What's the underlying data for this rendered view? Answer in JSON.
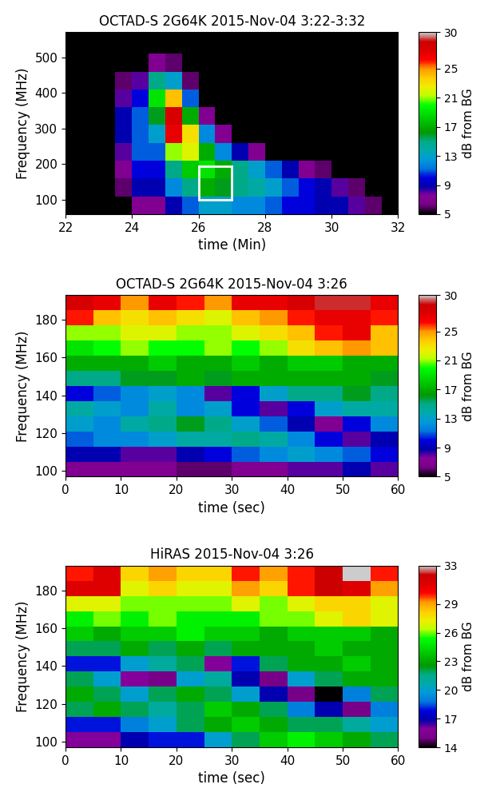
{
  "chart_data": [
    {
      "type": "heatmap",
      "title": "OCTAD-S 2G64K 2015-Nov-04 3:22-3:32",
      "x_label": "time (Min)",
      "y_label": "Frequency (MHz)",
      "xlim": [
        22,
        32
      ],
      "xticks": [
        22,
        24,
        26,
        28,
        30,
        32
      ],
      "ylim": [
        60,
        570
      ],
      "yticks": [
        100,
        200,
        300,
        400,
        500
      ],
      "x_edges": [
        22,
        22.5,
        23,
        23.5,
        24,
        24.5,
        25,
        25.5,
        26,
        26.5,
        27,
        27.5,
        28,
        28.5,
        29,
        29.5,
        30,
        30.5,
        31,
        31.5,
        32
      ],
      "y_edges": [
        60,
        110,
        160,
        210,
        260,
        310,
        360,
        410,
        460,
        510,
        570
      ],
      "cells": [
        [
          5,
          5,
          5,
          5,
          7,
          7,
          9,
          11,
          13,
          13,
          12,
          12,
          11,
          10,
          10,
          9,
          9,
          8,
          6,
          5
        ],
        [
          5,
          5,
          5,
          6,
          9,
          9,
          12,
          15,
          17,
          16,
          15,
          14,
          13,
          11,
          10,
          9,
          8,
          6,
          5,
          5
        ],
        [
          5,
          5,
          5,
          7,
          10,
          10,
          15,
          18,
          19,
          17,
          15,
          13,
          11,
          9,
          7,
          6,
          5,
          5,
          5,
          5
        ],
        [
          5,
          5,
          5,
          8,
          11,
          11,
          21,
          22,
          17,
          12,
          9,
          7,
          5,
          5,
          5,
          5,
          5,
          5,
          5,
          5
        ],
        [
          5,
          5,
          5,
          9,
          11,
          13,
          27,
          23,
          12,
          7,
          5,
          5,
          5,
          5,
          5,
          5,
          5,
          5,
          5,
          5
        ],
        [
          5,
          5,
          5,
          9,
          11,
          16,
          28,
          17,
          7,
          5,
          5,
          5,
          5,
          5,
          5,
          5,
          5,
          5,
          5,
          5
        ],
        [
          5,
          5,
          5,
          8,
          10,
          19,
          24,
          11,
          5,
          5,
          5,
          5,
          5,
          5,
          5,
          5,
          5,
          5,
          5,
          5
        ],
        [
          5,
          5,
          5,
          6,
          8,
          15,
          13,
          6,
          5,
          5,
          5,
          5,
          5,
          5,
          5,
          5,
          5,
          5,
          5,
          5
        ],
        [
          5,
          5,
          5,
          5,
          5,
          7,
          6,
          5,
          5,
          5,
          5,
          5,
          5,
          5,
          5,
          5,
          5,
          5,
          5,
          5
        ],
        [
          5,
          5,
          5,
          5,
          5,
          5,
          5,
          5,
          5,
          5,
          5,
          5,
          5,
          5,
          5,
          5,
          5,
          5,
          5,
          5
        ]
      ],
      "box": {
        "x": [
          26,
          27
        ],
        "y": [
          100,
          195
        ]
      },
      "colorbar": {
        "range": [
          5,
          30
        ],
        "ticks": [
          5,
          9,
          13,
          17,
          21,
          25,
          30
        ],
        "label": "dB from BG"
      }
    },
    {
      "type": "heatmap",
      "title": "OCTAD-S 2G64K 2015-Nov-04 3:26",
      "x_label": "time (sec)",
      "y_label": "Frequency (MHz)",
      "xlim": [
        0,
        60
      ],
      "xticks": [
        0,
        10,
        20,
        30,
        40,
        50,
        60
      ],
      "ylim": [
        97,
        193
      ],
      "yticks": [
        100,
        120,
        140,
        160,
        180
      ],
      "x_edges": [
        0,
        5,
        10,
        15,
        20,
        25,
        30,
        35,
        40,
        45,
        50,
        55,
        60
      ],
      "y_edges": [
        97,
        105,
        113,
        121,
        129,
        137,
        145,
        153,
        161,
        169,
        177,
        185,
        193
      ],
      "cells": [
        [
          7,
          7,
          7,
          7,
          6,
          6,
          7,
          7,
          8,
          8,
          9,
          8
        ],
        [
          9,
          9,
          8,
          8,
          9,
          10,
          11,
          12,
          13,
          12,
          11,
          10
        ],
        [
          11,
          12,
          12,
          13,
          14,
          14,
          15,
          14,
          12,
          10,
          8,
          9
        ],
        [
          13,
          12,
          14,
          15,
          16,
          15,
          13,
          11,
          9,
          7,
          10,
          12
        ],
        [
          14,
          13,
          12,
          14,
          12,
          13,
          10,
          8,
          10,
          13,
          14,
          14
        ],
        [
          10,
          11,
          12,
          13,
          12,
          8,
          10,
          13,
          15,
          15,
          16,
          15
        ],
        [
          15,
          15,
          16,
          16,
          17,
          16,
          17,
          17,
          17,
          17,
          17,
          16
        ],
        [
          17,
          17,
          17,
          18,
          17,
          17,
          18,
          17,
          18,
          18,
          17,
          17
        ],
        [
          19,
          20,
          21,
          20,
          20,
          21,
          20,
          21,
          23,
          24,
          25,
          24
        ],
        [
          21,
          21,
          22,
          22,
          21,
          21,
          22,
          23,
          24,
          26,
          27,
          24
        ],
        [
          26,
          24,
          23,
          24,
          23,
          22,
          24,
          25,
          26,
          27,
          27,
          26
        ],
        [
          28,
          27,
          25,
          27,
          26,
          25,
          27,
          27,
          28,
          29,
          29,
          27
        ]
      ],
      "colorbar": {
        "range": [
          5,
          30
        ],
        "ticks": [
          5,
          9,
          13,
          17,
          21,
          25,
          30
        ],
        "label": "dB from BG"
      }
    },
    {
      "type": "heatmap",
      "title": "HiRAS 2015-Nov-04 3:26",
      "x_label": "time (sec)",
      "y_label": "Frequency (MHz)",
      "xlim": [
        0,
        60
      ],
      "xticks": [
        0,
        10,
        20,
        30,
        40,
        50,
        60
      ],
      "ylim": [
        97,
        193
      ],
      "yticks": [
        100,
        120,
        140,
        160,
        180
      ],
      "x_edges": [
        0,
        5,
        10,
        15,
        20,
        25,
        30,
        35,
        40,
        45,
        50,
        55,
        60
      ],
      "y_edges": [
        97,
        105,
        113,
        121,
        129,
        137,
        145,
        153,
        161,
        169,
        177,
        185,
        193
      ],
      "cells": [
        [
          16,
          16,
          17,
          18,
          18,
          20,
          22,
          24,
          25,
          24,
          23,
          22
        ],
        [
          18,
          18,
          19,
          20,
          22,
          23,
          24,
          23,
          22,
          22,
          21,
          20
        ],
        [
          22,
          23,
          22,
          21,
          22,
          24,
          23,
          22,
          19,
          17,
          15,
          19
        ],
        [
          23,
          22,
          20,
          22,
          23,
          22,
          20,
          17,
          15,
          14,
          19,
          22
        ],
        [
          22,
          20,
          16,
          15,
          20,
          21,
          17,
          15,
          20,
          22,
          23,
          23
        ],
        [
          18,
          18,
          20,
          21,
          22,
          16,
          18,
          22,
          23,
          23,
          24,
          23
        ],
        [
          22,
          22,
          23,
          22,
          23,
          22,
          23,
          23,
          23,
          24,
          23,
          23
        ],
        [
          24,
          23,
          24,
          24,
          25,
          24,
          24,
          23,
          24,
          24,
          24,
          23
        ],
        [
          25,
          26,
          25,
          26,
          25,
          25,
          25,
          26,
          26,
          27,
          28,
          27
        ],
        [
          27,
          27,
          26,
          26,
          26,
          26,
          27,
          26,
          27,
          28,
          28,
          27
        ],
        [
          31,
          31,
          27,
          28,
          27,
          27,
          29,
          28,
          30,
          32,
          31,
          29
        ],
        [
          30,
          31,
          28,
          29,
          28,
          28,
          30,
          29,
          30,
          32,
          33,
          30
        ]
      ],
      "colorbar": {
        "range": [
          14,
          33
        ],
        "ticks": [
          14,
          17,
          20,
          23,
          26,
          29,
          33
        ],
        "label": "dB from BG"
      }
    }
  ]
}
